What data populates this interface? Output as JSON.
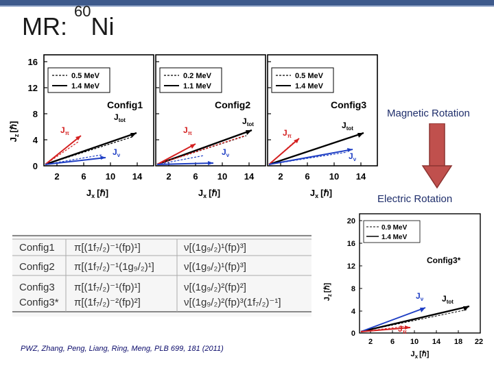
{
  "slide": {
    "title_prefix": "MR: ",
    "title_mass": "60",
    "title_element": "Ni"
  },
  "top_panels": {
    "y_axis_label": "J",
    "y_axis_sub": "z",
    "y_axis_unit": "[ℏ]",
    "y_ticks": [
      "0",
      "4",
      "8",
      "12",
      "16"
    ],
    "x_ticks": [
      "2",
      "6",
      "10",
      "14"
    ],
    "x_axis_label": "J",
    "x_axis_sub": "x",
    "x_axis_unit": "[ℏ]",
    "panels": [
      {
        "config": "Config1",
        "legend": [
          "0.5 MeV",
          "1.4 MeV"
        ]
      },
      {
        "config": "Config2",
        "legend": [
          "0.2 MeV",
          "1.1 MeV"
        ]
      },
      {
        "config": "Config3",
        "legend": [
          "0.5 MeV",
          "1.4 MeV"
        ]
      }
    ],
    "vector_labels": {
      "j_pi": "J",
      "pi_sub": "π",
      "j_nu": "J",
      "nu_sub": "ν",
      "j_tot": "J",
      "tot_sub": "tot"
    }
  },
  "magnetic_rotation": "Magnetic Rotation",
  "electric_rotation": "Electric Rotation",
  "arrow_color": "#c0504d",
  "config_table": {
    "rows": [
      {
        "name": "Config1",
        "pi": "π[(1f₇/₂)⁻¹(fp)¹]",
        "nu": "ν[(1g₉/₂)¹(fp)³]"
      },
      {
        "name": "Config2",
        "pi": "π[(1f₇/₂)⁻¹(1g₉/₂)¹]",
        "nu": "ν[(1g₉/₂)¹(fp)³]"
      },
      {
        "name": "Config3",
        "pi": "π[(1f₇/₂)⁻¹(fp)¹]",
        "nu": "ν[(1g₉/₂)²(fp)²]"
      },
      {
        "name": "Config3*",
        "pi": "π[(1f₇/₂)⁻²(fp)²]",
        "nu": "ν[(1g₉/₂)²(fp)³(1f₇/₂)⁻¹]"
      }
    ]
  },
  "bottom_panel": {
    "config": "Config3*",
    "legend": [
      "0.9 MeV",
      "1.4 MeV"
    ],
    "y_ticks": [
      "0",
      "4",
      "8",
      "12",
      "16",
      "20"
    ],
    "x_ticks": [
      "2",
      "6",
      "10",
      "14",
      "18",
      "22"
    ],
    "y_axis_label": "J",
    "y_axis_sub": "z",
    "y_axis_unit": "[ℏ]",
    "x_axis_label": "J",
    "x_axis_sub": "x",
    "x_axis_unit": "[ℏ]",
    "vector_labels": {
      "j_nu": "J",
      "nu_sub": "ν",
      "j_tot": "J",
      "tot_sub": "tot",
      "j_pi": "J",
      "pi_sub": "π"
    }
  },
  "reference": "PWZ, Zhang, Peng, Liang, Ring, Meng, PLB 699, 181 (2011)"
}
